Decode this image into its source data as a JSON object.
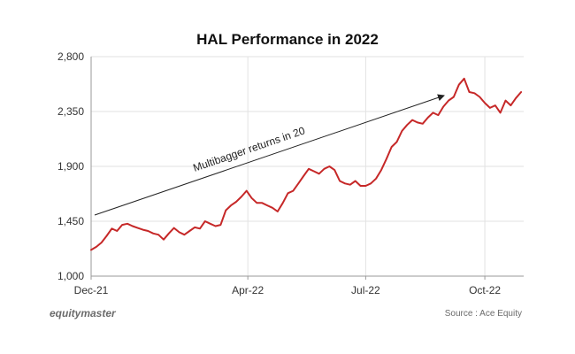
{
  "chart_data": {
    "type": "line",
    "title": "HAL Performance in 2022",
    "xlabel": "",
    "ylabel": "",
    "ylim": [
      1000,
      2800
    ],
    "yticks": [
      1000,
      1450,
      1900,
      2350,
      2800
    ],
    "ytick_labels": [
      "1,000",
      "1,450",
      "1,900",
      "2,350",
      "2,800"
    ],
    "xlim": [
      "2021-12-01",
      "2022-10-31"
    ],
    "xticks": [
      "2021-12-01",
      "2022-04-01",
      "2022-07-01",
      "2022-10-01"
    ],
    "xtick_labels": [
      "Dec-21",
      "Apr-22",
      "Jul-22",
      "Oct-22"
    ],
    "grid": true,
    "series": [
      {
        "color": "#c62828",
        "x": [
          "2021-12-01",
          "2021-12-05",
          "2021-12-09",
          "2021-12-13",
          "2021-12-17",
          "2021-12-21",
          "2021-12-25",
          "2021-12-29",
          "2022-01-02",
          "2022-01-06",
          "2022-01-10",
          "2022-01-14",
          "2022-01-18",
          "2022-01-22",
          "2022-01-26",
          "2022-01-30",
          "2022-02-03",
          "2022-02-07",
          "2022-02-11",
          "2022-02-15",
          "2022-02-19",
          "2022-02-23",
          "2022-02-27",
          "2022-03-03",
          "2022-03-07",
          "2022-03-11",
          "2022-03-15",
          "2022-03-19",
          "2022-03-23",
          "2022-03-27",
          "2022-03-31",
          "2022-04-04",
          "2022-04-08",
          "2022-04-12",
          "2022-04-16",
          "2022-04-20",
          "2022-04-24",
          "2022-04-28",
          "2022-05-02",
          "2022-05-06",
          "2022-05-10",
          "2022-05-14",
          "2022-05-18",
          "2022-05-22",
          "2022-05-26",
          "2022-05-30",
          "2022-06-03",
          "2022-06-07",
          "2022-06-11",
          "2022-06-15",
          "2022-06-19",
          "2022-06-23",
          "2022-06-27",
          "2022-07-01",
          "2022-07-05",
          "2022-07-09",
          "2022-07-13",
          "2022-07-17",
          "2022-07-21",
          "2022-07-25",
          "2022-07-29",
          "2022-08-02",
          "2022-08-06",
          "2022-08-10",
          "2022-08-14",
          "2022-08-18",
          "2022-08-22",
          "2022-08-26",
          "2022-08-30",
          "2022-09-03",
          "2022-09-07",
          "2022-09-11",
          "2022-09-15",
          "2022-09-19",
          "2022-09-23",
          "2022-09-27",
          "2022-10-01",
          "2022-10-05",
          "2022-10-09",
          "2022-10-13",
          "2022-10-17",
          "2022-10-21",
          "2022-10-25",
          "2022-10-29"
        ],
        "values": [
          1215,
          1240,
          1275,
          1330,
          1390,
          1370,
          1420,
          1430,
          1410,
          1395,
          1380,
          1370,
          1350,
          1340,
          1300,
          1350,
          1395,
          1360,
          1340,
          1370,
          1400,
          1390,
          1450,
          1430,
          1410,
          1420,
          1540,
          1580,
          1610,
          1650,
          1700,
          1640,
          1600,
          1600,
          1580,
          1560,
          1530,
          1600,
          1680,
          1700,
          1760,
          1820,
          1880,
          1860,
          1840,
          1880,
          1900,
          1870,
          1780,
          1760,
          1750,
          1780,
          1740,
          1740,
          1760,
          1800,
          1870,
          1960,
          2060,
          2100,
          2190,
          2240,
          2280,
          2260,
          2250,
          2300,
          2340,
          2320,
          2390,
          2440,
          2470,
          2570,
          2620,
          2510,
          2500,
          2470,
          2420,
          2380,
          2400,
          2340,
          2440,
          2400,
          2460,
          2510
        ]
      }
    ],
    "annotation": "Multibagger returns in 20",
    "brand": "equitymaster",
    "source": "Source : Ace Equity"
  }
}
